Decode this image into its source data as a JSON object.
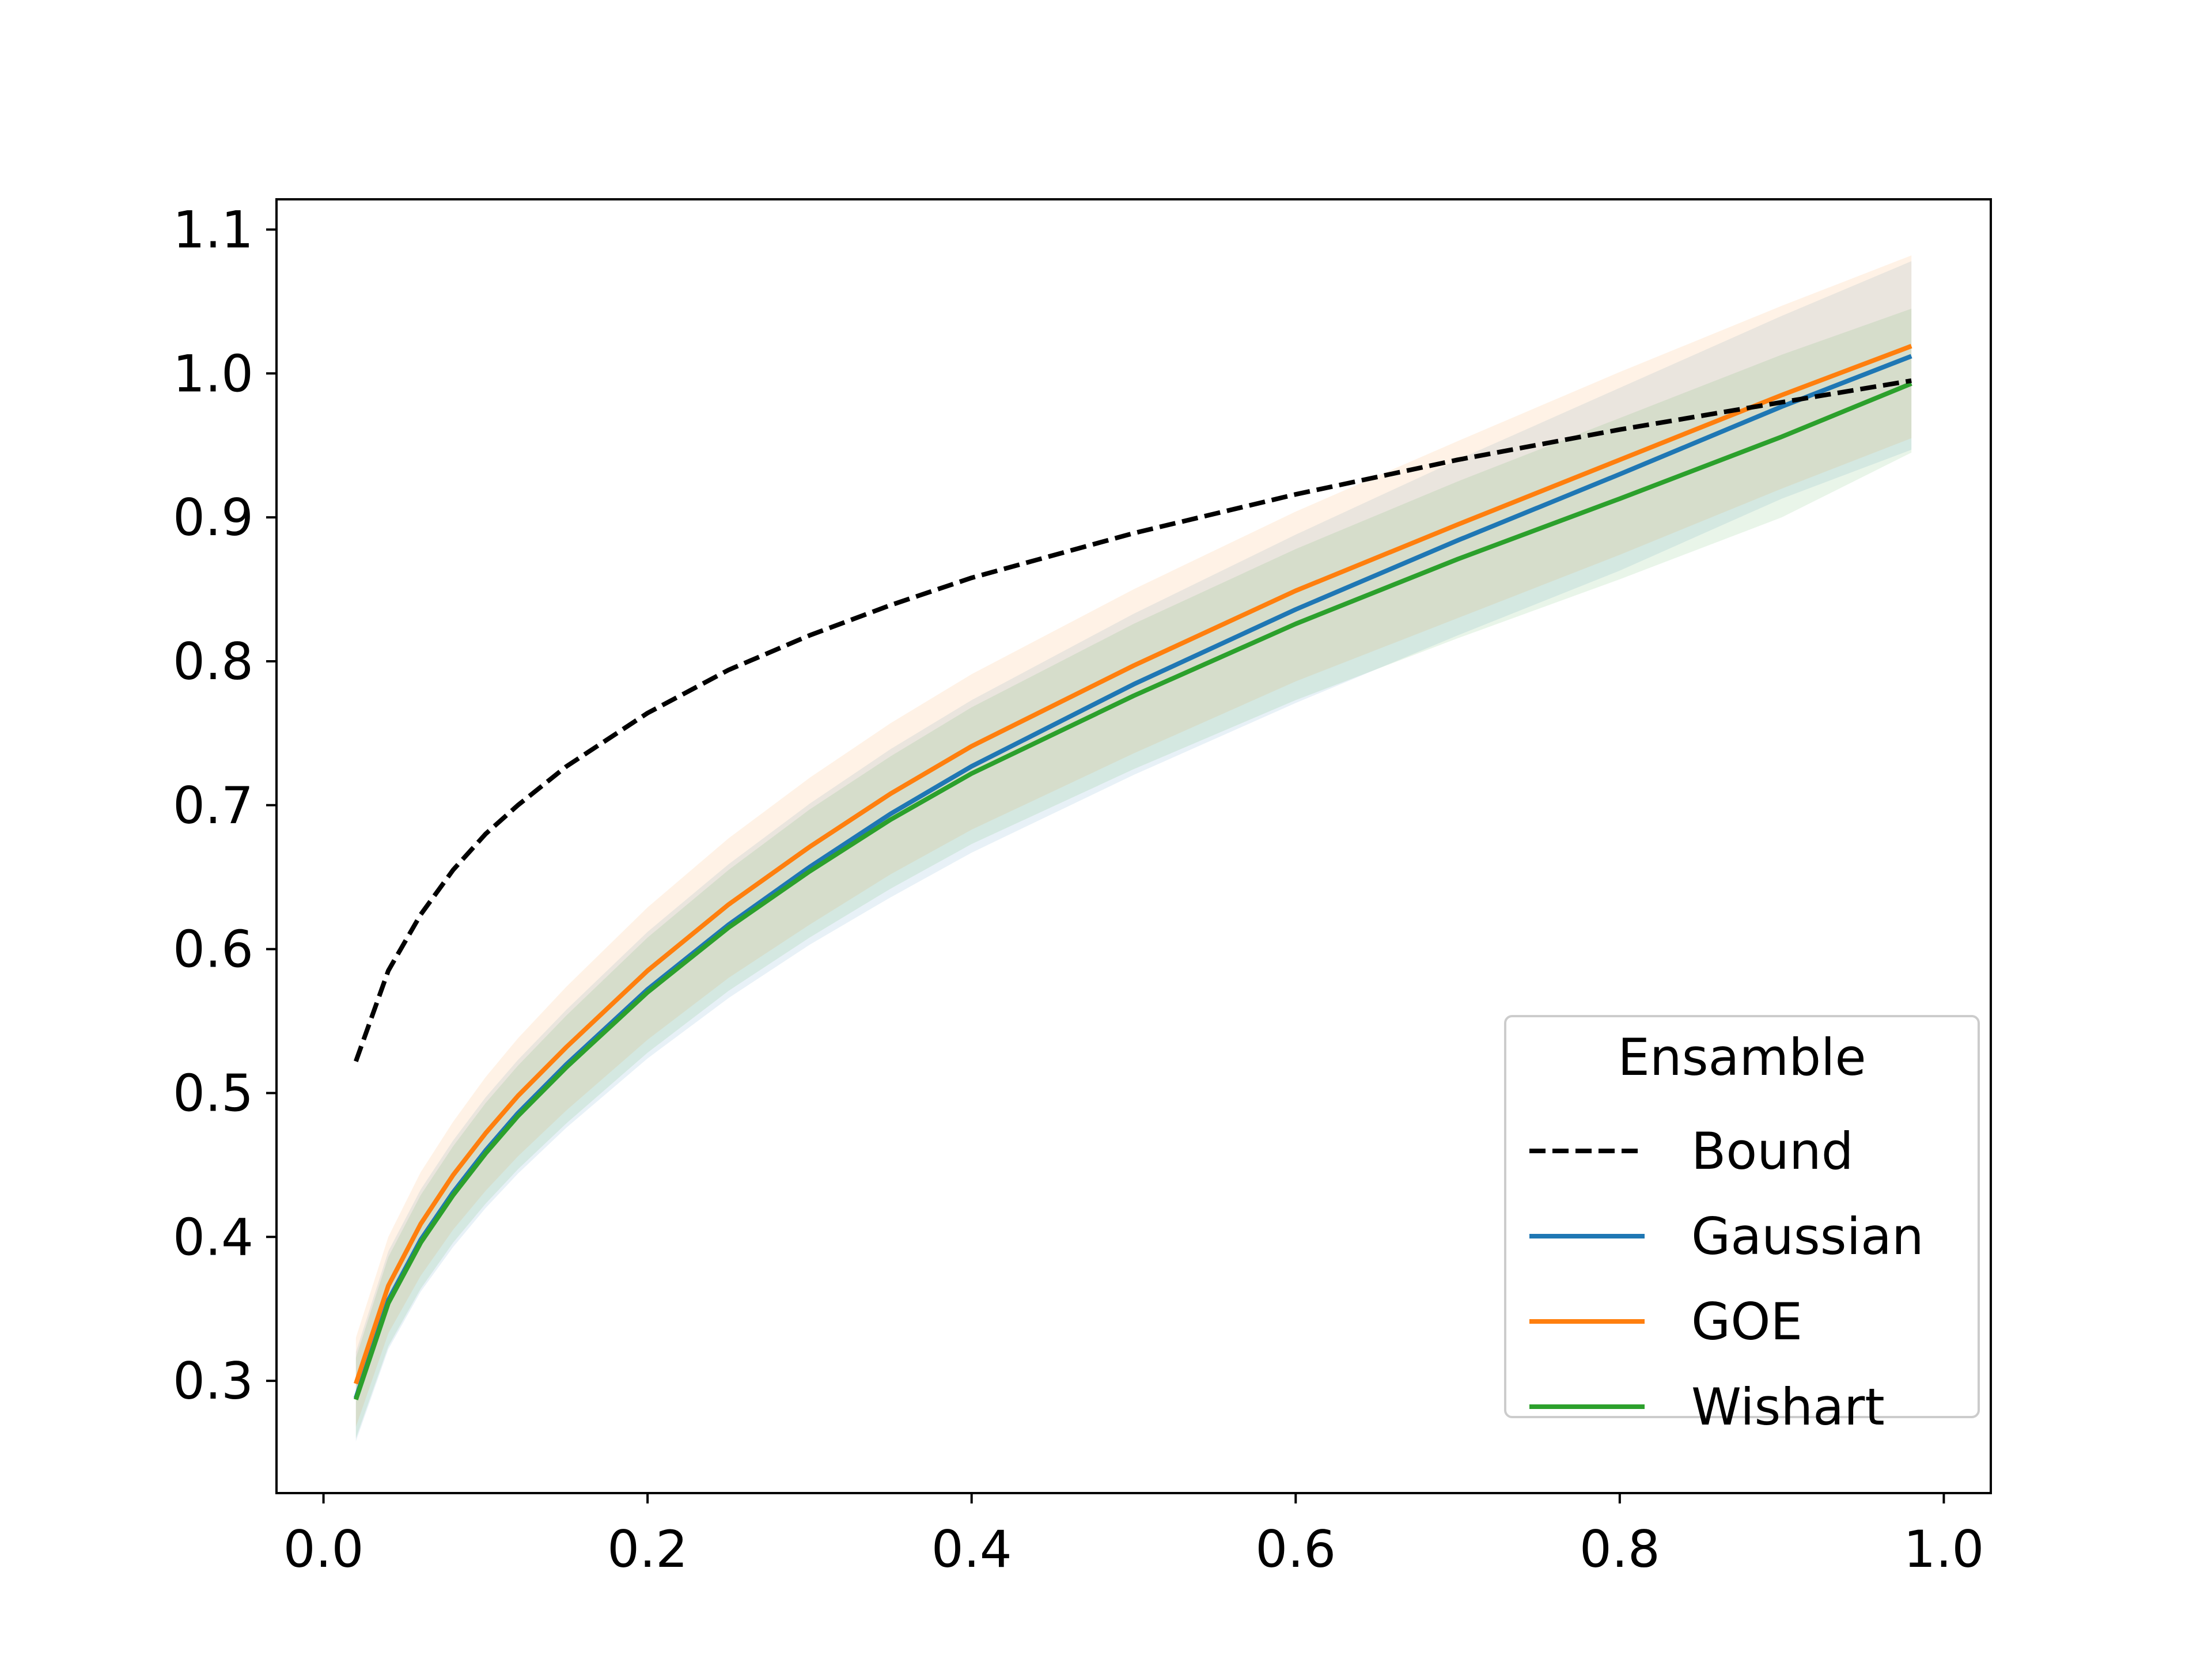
{
  "chart_data": {
    "type": "line",
    "xlim": [
      -0.029,
      1.029
    ],
    "ylim": [
      0.222,
      1.121
    ],
    "xticks": [
      0.0,
      0.2,
      0.4,
      0.6,
      0.8,
      1.0
    ],
    "xtick_labels": [
      "0.0",
      "0.2",
      "0.4",
      "0.6",
      "0.8",
      "1.0"
    ],
    "yticks": [
      0.3,
      0.4,
      0.5,
      0.6,
      0.7,
      0.8,
      0.9,
      1.0,
      1.1
    ],
    "ytick_labels": [
      "0.3",
      "0.4",
      "0.5",
      "0.6",
      "0.7",
      "0.8",
      "0.9",
      "1.0",
      "1.1"
    ],
    "grid": false,
    "legend": {
      "title": "Ensamble",
      "position": "lower-right"
    },
    "x": [
      0.02,
      0.04,
      0.06,
      0.08,
      0.1,
      0.12,
      0.15,
      0.2,
      0.25,
      0.3,
      0.35,
      0.4,
      0.5,
      0.6,
      0.7,
      0.8,
      0.9,
      0.98
    ],
    "series": [
      {
        "name": "Bound",
        "color": "#000000",
        "dashed": true,
        "values": [
          0.522,
          0.585,
          0.624,
          0.655,
          0.68,
          0.7,
          0.727,
          0.764,
          0.794,
          0.818,
          0.839,
          0.858,
          0.889,
          0.916,
          0.94,
          0.961,
          0.98,
          0.995
        ]
      },
      {
        "name": "Gaussian",
        "color": "#1f77b4",
        "values": [
          0.288,
          0.356,
          0.398,
          0.431,
          0.46,
          0.486,
          0.52,
          0.572,
          0.617,
          0.657,
          0.694,
          0.727,
          0.784,
          0.836,
          0.884,
          0.93,
          0.977,
          1.012
        ],
        "band_lower": [
          0.258,
          0.322,
          0.362,
          0.393,
          0.42,
          0.444,
          0.476,
          0.524,
          0.566,
          0.603,
          0.636,
          0.667,
          0.721,
          0.771,
          0.818,
          0.863,
          0.913,
          0.947
        ],
        "band_upper": [
          0.32,
          0.39,
          0.433,
          0.467,
          0.497,
          0.523,
          0.558,
          0.612,
          0.659,
          0.701,
          0.739,
          0.773,
          0.833,
          0.888,
          0.94,
          0.99,
          1.04,
          1.078
        ]
      },
      {
        "name": "GOE",
        "color": "#ff7f0e",
        "values": [
          0.298,
          0.366,
          0.409,
          0.443,
          0.472,
          0.498,
          0.532,
          0.585,
          0.631,
          0.671,
          0.708,
          0.741,
          0.797,
          0.849,
          0.895,
          0.94,
          0.985,
          1.019
        ],
        "band_lower": [
          0.268,
          0.333,
          0.373,
          0.405,
          0.432,
          0.456,
          0.488,
          0.537,
          0.58,
          0.617,
          0.652,
          0.683,
          0.736,
          0.786,
          0.83,
          0.874,
          0.92,
          0.955
        ],
        "band_upper": [
          0.33,
          0.4,
          0.445,
          0.48,
          0.511,
          0.538,
          0.574,
          0.629,
          0.677,
          0.719,
          0.757,
          0.791,
          0.85,
          0.904,
          0.953,
          1.001,
          1.047,
          1.082
        ]
      },
      {
        "name": "Wishart",
        "color": "#2ca02c",
        "values": [
          0.287,
          0.354,
          0.396,
          0.429,
          0.458,
          0.484,
          0.518,
          0.57,
          0.615,
          0.654,
          0.69,
          0.722,
          0.776,
          0.826,
          0.871,
          0.913,
          0.956,
          0.993
        ],
        "band_lower": [
          0.26,
          0.324,
          0.364,
          0.396,
          0.423,
          0.447,
          0.479,
          0.528,
          0.571,
          0.608,
          0.642,
          0.673,
          0.725,
          0.773,
          0.816,
          0.857,
          0.9,
          0.945
        ],
        "band_upper": [
          0.316,
          0.386,
          0.429,
          0.463,
          0.493,
          0.519,
          0.554,
          0.608,
          0.655,
          0.697,
          0.734,
          0.768,
          0.826,
          0.878,
          0.925,
          0.969,
          1.013,
          1.045
        ]
      }
    ]
  }
}
